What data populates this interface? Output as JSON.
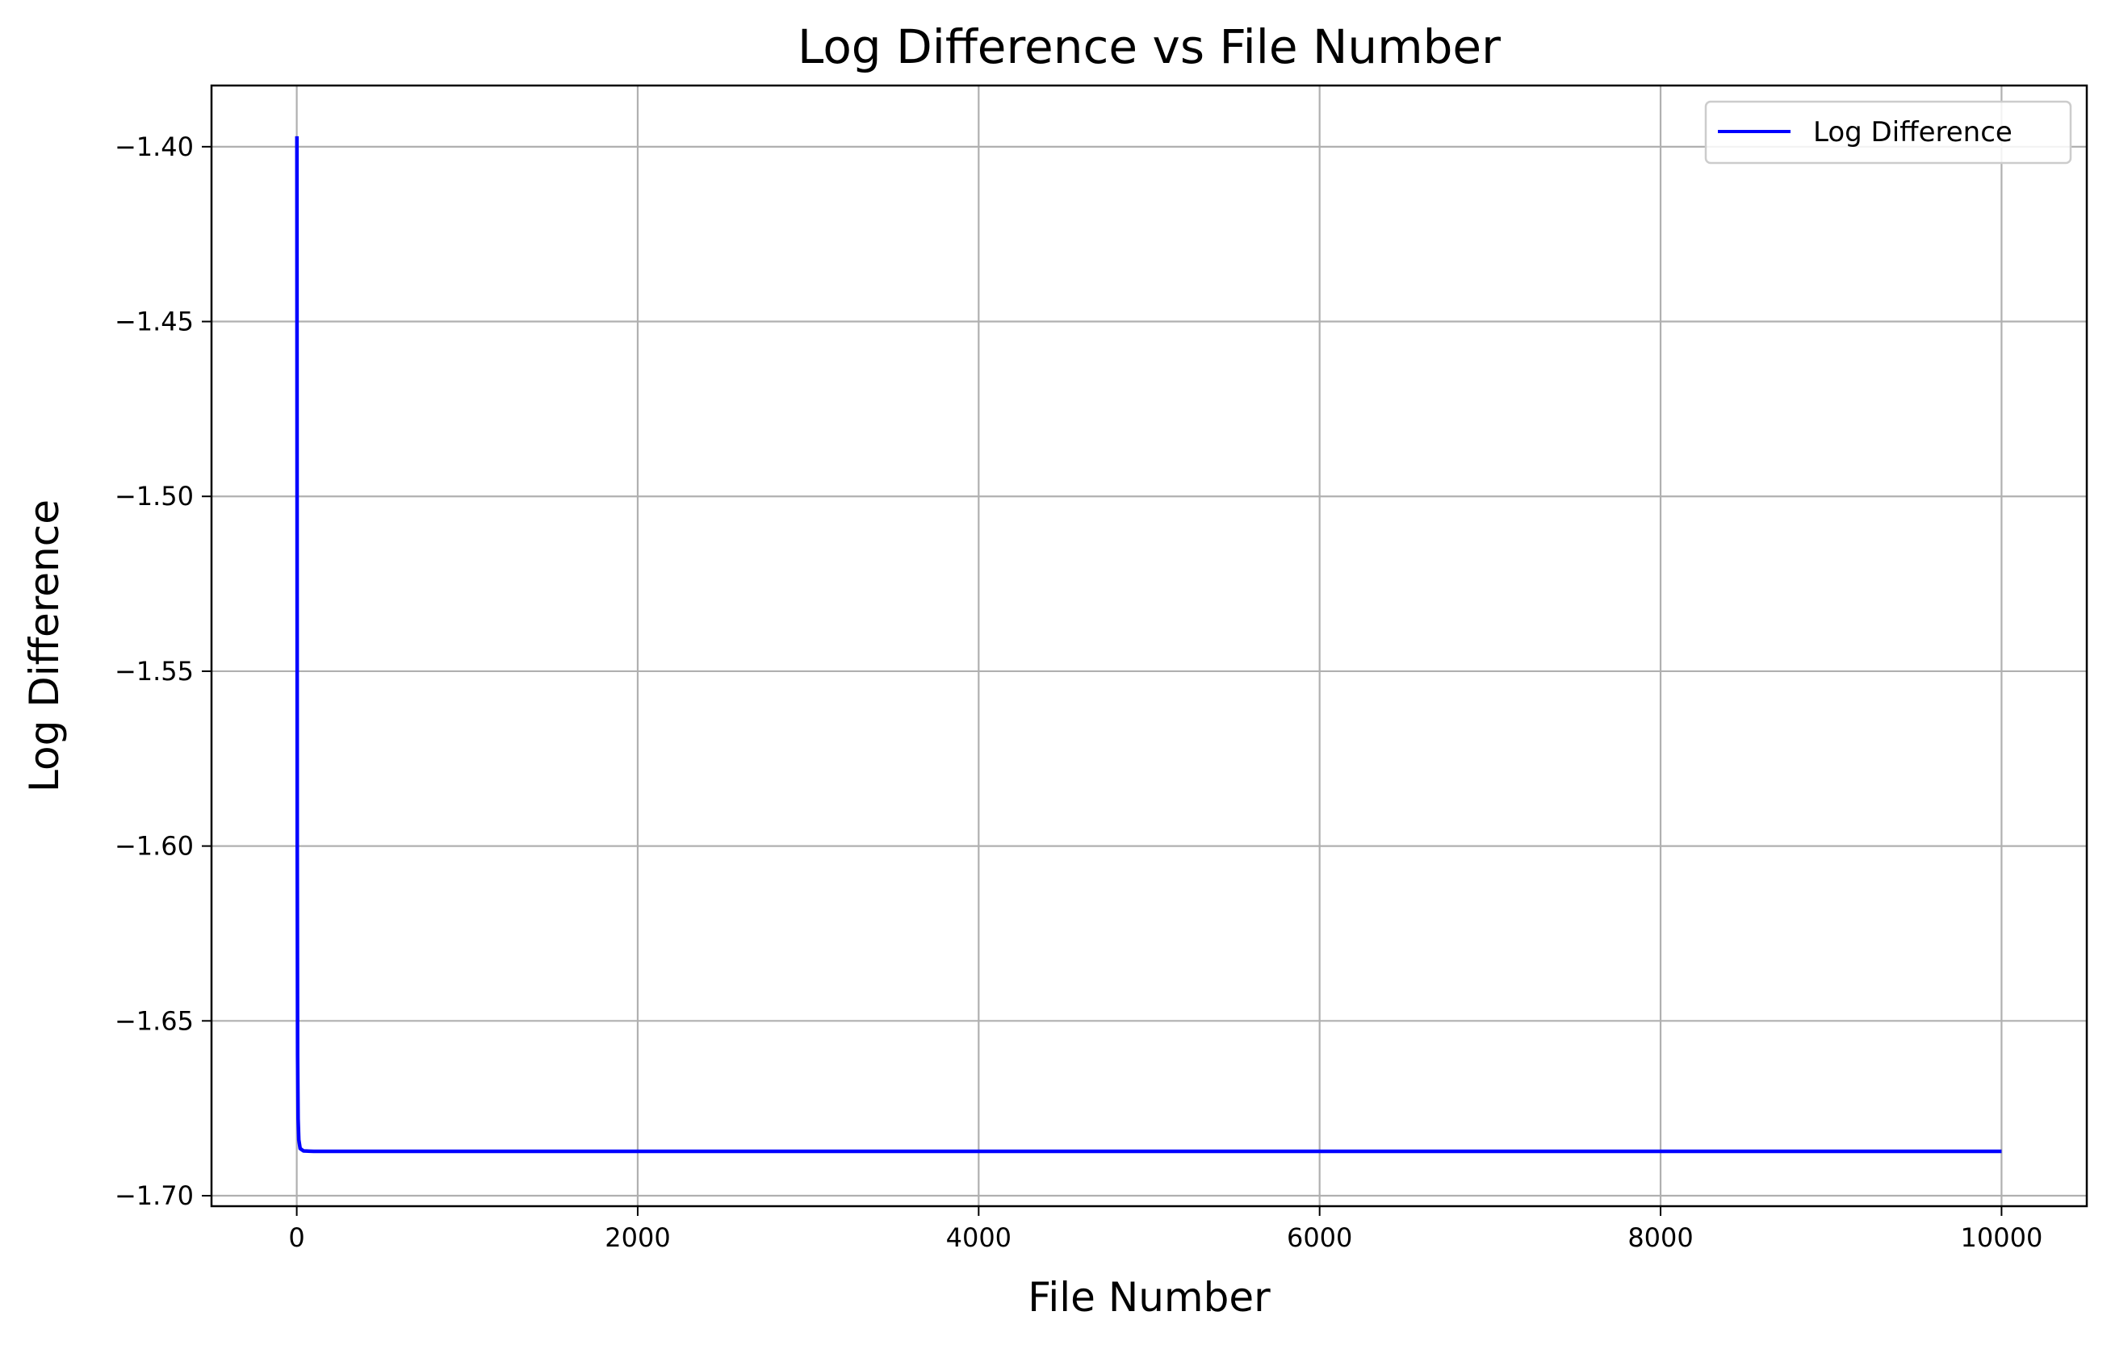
{
  "chart_data": {
    "type": "line",
    "title": "Log Difference vs File Number",
    "xlabel": "File Number",
    "ylabel": "Log Difference",
    "xlim": [
      -500,
      10500
    ],
    "ylim": [
      -1.703,
      -1.3825
    ],
    "xticks": [
      0,
      2000,
      4000,
      6000,
      8000,
      10000
    ],
    "xtick_labels": [
      "0",
      "2000",
      "4000",
      "6000",
      "8000",
      "10000"
    ],
    "yticks": [
      -1.4,
      -1.45,
      -1.5,
      -1.55,
      -1.6,
      -1.65,
      -1.7
    ],
    "ytick_labels": [
      "−1.40",
      "−1.45",
      "−1.50",
      "−1.55",
      "−1.60",
      "−1.65",
      "−1.70"
    ],
    "grid": true,
    "legend_position": "top-right",
    "series": [
      {
        "name": "Log Difference",
        "color": "#0000ff",
        "x": [
          1,
          2,
          3,
          5,
          8,
          12,
          20,
          40,
          100,
          500,
          1000,
          2000,
          4000,
          6000,
          8000,
          10000
        ],
        "y": [
          -1.397,
          -1.5,
          -1.6,
          -1.66,
          -1.678,
          -1.684,
          -1.6865,
          -1.6872,
          -1.6873,
          -1.6873,
          -1.6873,
          -1.6873,
          -1.6873,
          -1.6873,
          -1.6873,
          -1.6873
        ]
      }
    ]
  }
}
